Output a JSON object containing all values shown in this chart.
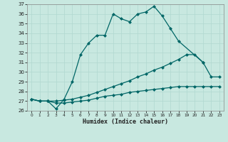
{
  "xlabel": "Humidex (Indice chaleur)",
  "bg_color": "#c8e8e0",
  "grid_color": "#b0d8d0",
  "line_color": "#006666",
  "xlim": [
    -0.5,
    23.5
  ],
  "ylim": [
    26,
    37
  ],
  "yticks": [
    26,
    27,
    28,
    29,
    30,
    31,
    32,
    33,
    34,
    35,
    36,
    37
  ],
  "xticks": [
    0,
    1,
    2,
    3,
    4,
    5,
    6,
    7,
    8,
    9,
    10,
    11,
    12,
    13,
    14,
    15,
    16,
    17,
    18,
    19,
    20,
    21,
    22,
    23
  ],
  "curve1_x": [
    0,
    1,
    2,
    3,
    4,
    5,
    6,
    7,
    8,
    9,
    10,
    11,
    12,
    13,
    14,
    15,
    16,
    17,
    18,
    21
  ],
  "curve1_y": [
    27.2,
    27.0,
    27.0,
    26.2,
    27.2,
    29.0,
    31.8,
    33.0,
    33.8,
    33.8,
    36.0,
    35.5,
    35.2,
    36.0,
    36.2,
    36.8,
    35.8,
    34.5,
    33.2,
    31.0
  ],
  "curve2_x": [
    0,
    1,
    2,
    3,
    4,
    5,
    6,
    7,
    8,
    9,
    10,
    11,
    12,
    13,
    14,
    15,
    16,
    17,
    18,
    19,
    20,
    21,
    22,
    23
  ],
  "curve2_y": [
    27.2,
    27.0,
    27.0,
    27.0,
    27.1,
    27.2,
    27.4,
    27.6,
    27.9,
    28.2,
    28.5,
    28.8,
    29.1,
    29.5,
    29.8,
    30.2,
    30.5,
    30.9,
    31.3,
    31.8,
    31.8,
    31.0,
    29.5,
    29.5
  ],
  "curve3_x": [
    0,
    1,
    2,
    3,
    4,
    5,
    6,
    7,
    8,
    9,
    10,
    11,
    12,
    13,
    14,
    15,
    16,
    17,
    18,
    19,
    20,
    21,
    22,
    23
  ],
  "curve3_y": [
    27.2,
    27.0,
    27.0,
    26.8,
    26.8,
    26.9,
    27.0,
    27.1,
    27.3,
    27.5,
    27.6,
    27.7,
    27.9,
    28.0,
    28.1,
    28.2,
    28.3,
    28.4,
    28.5,
    28.5,
    28.5,
    28.5,
    28.5,
    28.5
  ]
}
